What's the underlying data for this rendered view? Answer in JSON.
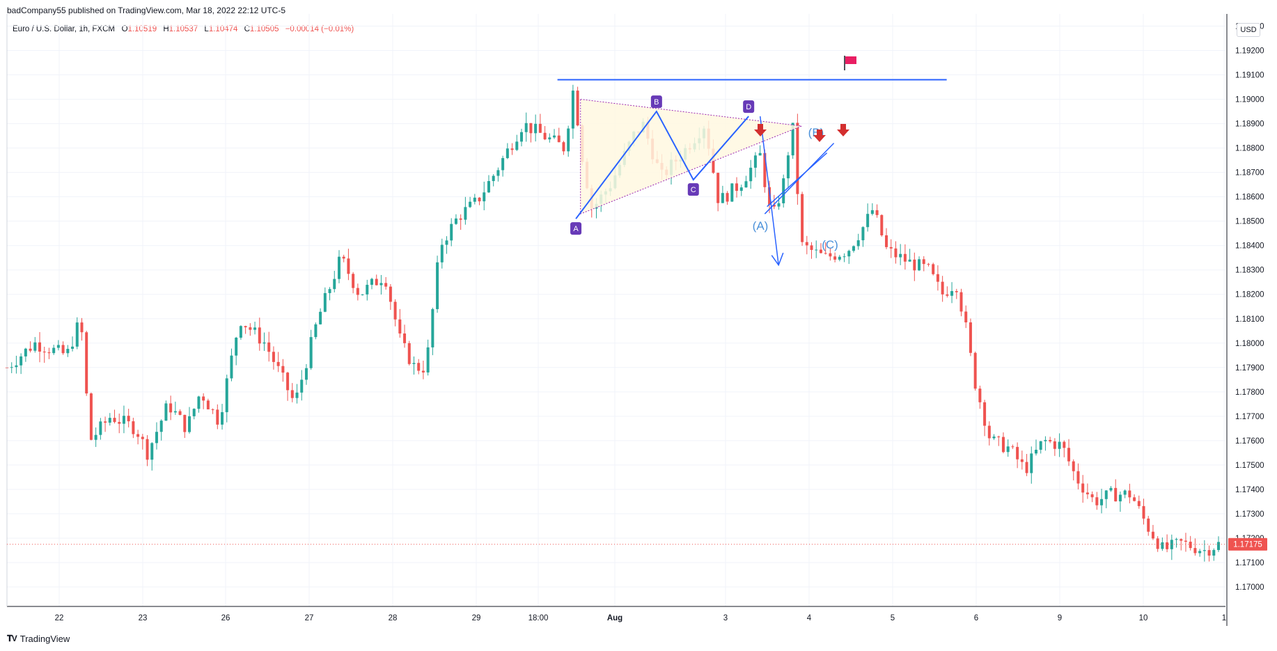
{
  "header": {
    "published": "badCompany55 published on TradingView.com, Mar 18, 2022 22:12 UTC-5",
    "symbol": "Euro / U.S. Dollar, 1h, FXCM",
    "ohlc": {
      "o_label": "O",
      "o": "1.10519",
      "h_label": "H",
      "h": "1.10537",
      "l_label": "L",
      "l": "1.10474",
      "c_label": "C",
      "c": "1.10505",
      "change": "−0.00014 (−0.01%)"
    }
  },
  "currency_button": "USD",
  "last_price_label": "1.17175",
  "footer": {
    "brand": "TradingView"
  },
  "colors": {
    "up": "#26a69a",
    "down": "#ef5350",
    "drawing": "#2962ff",
    "marker": "#673ab7",
    "arrow": "#d32f2f",
    "triangle_fill": "#fff8e1"
  },
  "chart_data": {
    "type": "candlestick",
    "symbol": "EURUSD",
    "timeframe": "1h",
    "ylim": [
      1.1692,
      1.1935
    ],
    "y_ticks": [
      "1.17000",
      "1.17100",
      "1.17200",
      "1.17300",
      "1.17400",
      "1.17500",
      "1.17600",
      "1.17700",
      "1.17800",
      "1.17900",
      "1.18000",
      "1.18100",
      "1.18200",
      "1.18300",
      "1.18400",
      "1.18500",
      "1.18600",
      "1.18700",
      "1.18800",
      "1.18900",
      "1.19000",
      "1.19100",
      "1.19200",
      "1.19300"
    ],
    "x_ticks": [
      "22",
      "23",
      "26",
      "27",
      "28",
      "29",
      "18:00",
      "Aug",
      "3",
      "4",
      "5",
      "6",
      "9",
      "10",
      "1"
    ],
    "close_path": [
      {
        "t": 0,
        "y": 1.179
      },
      {
        "t": 1.2,
        "y": 1.18
      },
      {
        "t": 2.6,
        "y": 1.1795
      },
      {
        "t": 3.2,
        "y": 1.181
      },
      {
        "t": 3.6,
        "y": 1.176
      },
      {
        "t": 4.5,
        "y": 1.177
      },
      {
        "t": 5.6,
        "y": 1.1765
      },
      {
        "t": 6.1,
        "y": 1.1755
      },
      {
        "t": 7.0,
        "y": 1.1775
      },
      {
        "t": 7.8,
        "y": 1.1765
      },
      {
        "t": 8.4,
        "y": 1.178
      },
      {
        "t": 9.2,
        "y": 1.1768
      },
      {
        "t": 10.1,
        "y": 1.181
      },
      {
        "t": 11.2,
        "y": 1.18
      },
      {
        "t": 12.5,
        "y": 1.1775
      },
      {
        "t": 13.5,
        "y": 1.181
      },
      {
        "t": 14.5,
        "y": 1.1835
      },
      {
        "t": 15.3,
        "y": 1.182
      },
      {
        "t": 16.4,
        "y": 1.1828
      },
      {
        "t": 17.1,
        "y": 1.18
      },
      {
        "t": 17.7,
        "y": 1.179
      },
      {
        "t": 18.2,
        "y": 1.179
      },
      {
        "t": 18.8,
        "y": 1.184
      },
      {
        "t": 19.6,
        "y": 1.1852
      },
      {
        "t": 20.4,
        "y": 1.1858
      },
      {
        "t": 21.2,
        "y": 1.187
      },
      {
        "t": 22.4,
        "y": 1.189
      },
      {
        "t": 23.3,
        "y": 1.1885
      },
      {
        "t": 24.2,
        "y": 1.188
      },
      {
        "t": 24.6,
        "y": 1.1905
      },
      {
        "t": 25.0,
        "y": 1.1875
      },
      {
        "t": 25.4,
        "y": 1.1855
      },
      {
        "t": 26.2,
        "y": 1.1865
      },
      {
        "t": 27.2,
        "y": 1.1885
      },
      {
        "t": 27.6,
        "y": 1.189
      },
      {
        "t": 28.4,
        "y": 1.1868
      },
      {
        "t": 29.5,
        "y": 1.188
      },
      {
        "t": 30.3,
        "y": 1.189
      },
      {
        "t": 30.9,
        "y": 1.1858
      },
      {
        "t": 31.8,
        "y": 1.1865
      },
      {
        "t": 32.7,
        "y": 1.1877
      },
      {
        "t": 33.2,
        "y": 1.185
      },
      {
        "t": 33.7,
        "y": 1.1865
      },
      {
        "t": 34.1,
        "y": 1.189
      },
      {
        "t": 34.5,
        "y": 1.184
      },
      {
        "t": 35.5,
        "y": 1.1835
      },
      {
        "t": 36.5,
        "y": 1.1838
      },
      {
        "t": 37.2,
        "y": 1.1848
      },
      {
        "t": 37.6,
        "y": 1.1855
      },
      {
        "t": 38.2,
        "y": 1.1838
      },
      {
        "t": 39.2,
        "y": 1.1833
      },
      {
        "t": 40.0,
        "y": 1.183
      },
      {
        "t": 40.6,
        "y": 1.182
      },
      {
        "t": 41.2,
        "y": 1.1825
      },
      {
        "t": 41.6,
        "y": 1.1808
      },
      {
        "t": 42.0,
        "y": 1.1785
      },
      {
        "t": 42.7,
        "y": 1.176
      },
      {
        "t": 43.5,
        "y": 1.1757
      },
      {
        "t": 44.2,
        "y": 1.1748
      },
      {
        "t": 45.0,
        "y": 1.176
      },
      {
        "t": 45.8,
        "y": 1.1758
      },
      {
        "t": 46.4,
        "y": 1.1745
      },
      {
        "t": 47.2,
        "y": 1.1735
      },
      {
        "t": 48.0,
        "y": 1.1738
      },
      {
        "t": 48.8,
        "y": 1.1738
      },
      {
        "t": 49.5,
        "y": 1.1725
      },
      {
        "t": 50.2,
        "y": 1.1715
      },
      {
        "t": 51.0,
        "y": 1.1718
      },
      {
        "t": 52.0,
        "y": 1.1715
      },
      {
        "t": 52.6,
        "y": 1.17175
      }
    ],
    "patterns": {
      "abcd_labels": [
        "A",
        "B",
        "C",
        "D"
      ],
      "abcd_points": [
        [
          24.7,
          1.1851
        ],
        [
          28.2,
          1.1895
        ],
        [
          29.8,
          1.1867
        ],
        [
          32.2,
          1.1893
        ]
      ],
      "wave_labels": [
        "(A)",
        "(B)",
        "(C)"
      ],
      "resistance_level": 1.1908
    }
  }
}
